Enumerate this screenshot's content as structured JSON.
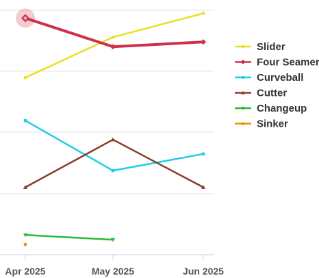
{
  "chart_data": {
    "type": "line",
    "categories": [
      "Apr 2025",
      "May 2025",
      "Jun 2025"
    ],
    "ylim": [
      0,
      100
    ],
    "grid": true,
    "legend_position": "right",
    "highlighted_point": {
      "series": "Four Seamer",
      "category": "Apr 2025"
    },
    "series": [
      {
        "name": "Slider",
        "color": "#e8e022",
        "marker": "circle",
        "values": [
          72,
          89,
          99
        ]
      },
      {
        "name": "Four Seamer",
        "color": "#d0304a",
        "marker": "diamond",
        "values": [
          97,
          85,
          87
        ]
      },
      {
        "name": "Curveball",
        "color": "#1fcde4",
        "marker": "square",
        "values": [
          54,
          33,
          40
        ]
      },
      {
        "name": "Cutter",
        "color": "#8b3a2b",
        "marker": "triangle-up",
        "values": [
          26,
          46,
          26
        ]
      },
      {
        "name": "Changeup",
        "color": "#28b83a",
        "marker": "triangle-down",
        "values": [
          6,
          4,
          null
        ]
      },
      {
        "name": "Sinker",
        "color": "#f28c00",
        "marker": "circle",
        "values": [
          2,
          null,
          null
        ]
      }
    ]
  }
}
